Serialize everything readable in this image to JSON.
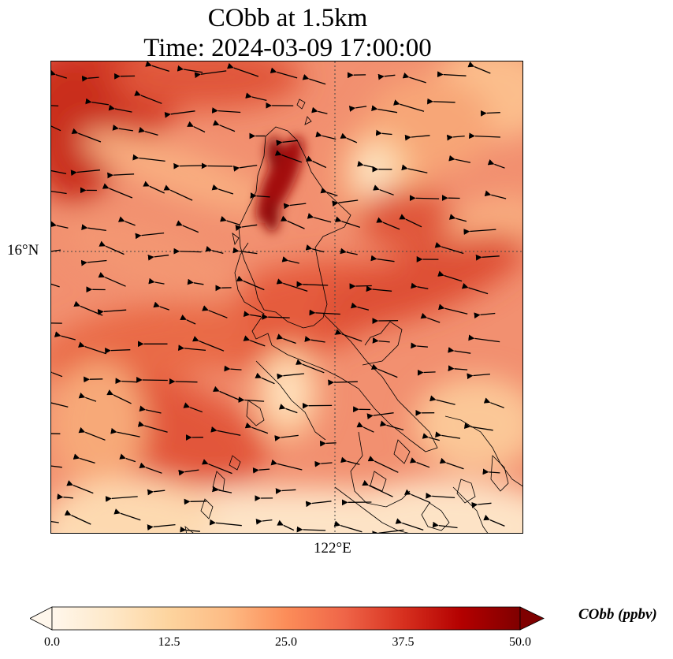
{
  "title_line1": "CObb at 1.5km",
  "title_line2": "Time: 2024-03-09 17:00:00",
  "lat_tick": "16°N",
  "lon_tick": "122°E",
  "colorbar": {
    "label": "CObb (ppbv)",
    "ticks": [
      "0.0",
      "12.5",
      "25.0",
      "37.5",
      "50.0"
    ],
    "min": 0,
    "max": 50,
    "colormap": [
      "#fff7ec",
      "#fee8c8",
      "#fdd49e",
      "#fdbb84",
      "#fc8d59",
      "#ef6548",
      "#d7301f",
      "#b30000",
      "#7f0000"
    ]
  }
}
